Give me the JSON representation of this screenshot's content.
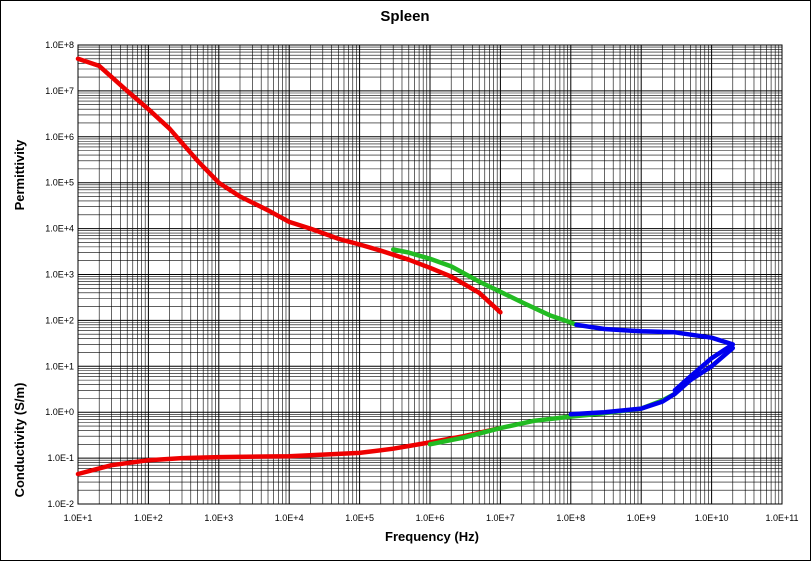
{
  "chart_data": {
    "type": "line",
    "title": "Spleen",
    "xlabel": "Frequency (Hz)",
    "ylabel_upper": "Permittivity",
    "ylabel_lower": "Conductivity (S/m)",
    "x_scale": "log",
    "y_scale": "log",
    "xlim": [
      10,
      100000000000
    ],
    "ylim": [
      0.01,
      100000000
    ],
    "x_ticks": [
      {
        "value": 10,
        "label": "1.0E+1"
      },
      {
        "value": 100,
        "label": "1.0E+2"
      },
      {
        "value": 1000,
        "label": "1.0E+3"
      },
      {
        "value": 10000,
        "label": "1.0E+4"
      },
      {
        "value": 100000,
        "label": "1.0E+5"
      },
      {
        "value": 1000000,
        "label": "1.0E+6"
      },
      {
        "value": 10000000,
        "label": "1.0E+7"
      },
      {
        "value": 100000000,
        "label": "1.0E+8"
      },
      {
        "value": 1000000000,
        "label": "1.0E+9"
      },
      {
        "value": 10000000000,
        "label": "1.0E+10"
      },
      {
        "value": 100000000000,
        "label": "1.0E+11"
      }
    ],
    "y_ticks": [
      {
        "value": 0.01,
        "label": "1.0E-2"
      },
      {
        "value": 0.1,
        "label": "1.0E-1"
      },
      {
        "value": 1,
        "label": "1.0E+0"
      },
      {
        "value": 10,
        "label": "1.0E+1"
      },
      {
        "value": 100,
        "label": "1.0E+2"
      },
      {
        "value": 1000,
        "label": "1.0E+3"
      },
      {
        "value": 10000,
        "label": "1.0E+4"
      },
      {
        "value": 100000,
        "label": "1.0E+5"
      },
      {
        "value": 1000000,
        "label": "1.0E+6"
      },
      {
        "value": 10000000,
        "label": "1.0E+7"
      },
      {
        "value": 100000000,
        "label": "1.0E+8"
      }
    ],
    "grid": true,
    "colors": {
      "low_freq": "#ee0000",
      "mid_freq": "#22bb22",
      "high_freq": "#0000ee"
    },
    "series": [
      {
        "color_key": "low_freq",
        "points": [
          [
            10,
            50000000
          ],
          [
            20,
            35000000
          ],
          [
            50,
            10000000
          ],
          [
            100,
            4000000
          ],
          [
            200,
            1500000
          ],
          [
            500,
            300000
          ],
          [
            1000,
            100000
          ],
          [
            2000,
            50000
          ],
          [
            5000,
            25000
          ],
          [
            10000,
            14000
          ],
          [
            20000,
            10000
          ],
          [
            50000,
            6000
          ],
          [
            100000,
            4500
          ],
          [
            200000,
            3300
          ],
          [
            500000,
            2100
          ],
          [
            1000000,
            1400
          ],
          [
            2000000,
            900
          ],
          [
            5000000,
            400
          ],
          [
            10000000,
            150
          ]
        ]
      },
      {
        "color_key": "mid_freq",
        "points": [
          [
            300000,
            3500
          ],
          [
            500000,
            3000
          ],
          [
            1000000,
            2200
          ],
          [
            2000000,
            1500
          ],
          [
            5000000,
            700
          ],
          [
            10000000,
            420
          ],
          [
            20000000,
            250
          ],
          [
            50000000,
            130
          ],
          [
            100000000,
            90
          ],
          [
            120000000,
            80
          ]
        ]
      },
      {
        "color_key": "high_freq",
        "points": [
          [
            120000000,
            80
          ],
          [
            300000000,
            65
          ],
          [
            1000000000,
            58
          ],
          [
            3000000000,
            55
          ],
          [
            10000000000,
            42
          ],
          [
            20000000000,
            30
          ],
          [
            10000000000,
            15
          ],
          [
            5000000000,
            6
          ],
          [
            3000000000,
            3
          ]
        ]
      },
      {
        "color_key": "low_freq",
        "points": [
          [
            10,
            0.045
          ],
          [
            30,
            0.07
          ],
          [
            100,
            0.09
          ],
          [
            300,
            0.1
          ],
          [
            1000,
            0.105
          ],
          [
            10000,
            0.11
          ],
          [
            100000,
            0.13
          ],
          [
            300000,
            0.16
          ],
          [
            1000000,
            0.22
          ],
          [
            3000000,
            0.3
          ],
          [
            10000000,
            0.45
          ]
        ]
      },
      {
        "color_key": "mid_freq",
        "points": [
          [
            1000000,
            0.2
          ],
          [
            3000000,
            0.28
          ],
          [
            10000000,
            0.45
          ],
          [
            30000000,
            0.65
          ],
          [
            100000000,
            0.8
          ],
          [
            300000000,
            0.95
          ],
          [
            1000000000,
            1.2
          ],
          [
            2000000000,
            1.8
          ],
          [
            3000000000,
            2.5
          ]
        ]
      },
      {
        "color_key": "high_freq",
        "points": [
          [
            100000000,
            0.9
          ],
          [
            300000000,
            1.0
          ],
          [
            1000000000,
            1.2
          ],
          [
            2000000000,
            1.7
          ],
          [
            3000000000,
            2.5
          ],
          [
            5000000000,
            5
          ],
          [
            10000000000,
            10
          ],
          [
            20000000000,
            25
          ]
        ]
      }
    ]
  }
}
